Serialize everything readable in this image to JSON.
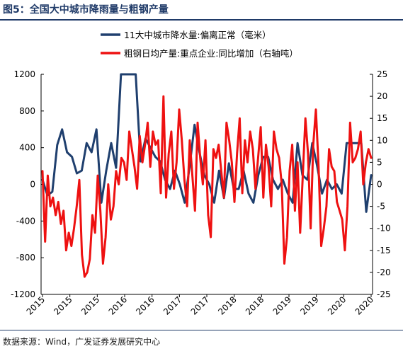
{
  "header": {
    "title": "图5：全国大中城市降雨量与粗钢产量"
  },
  "footer": {
    "source": "数据来源：Wind，广发证券发展研究中心"
  },
  "chart_data": {
    "type": "line",
    "title": "图5：全国大中城市降雨量与粗钢产量",
    "grid": false,
    "legend_position": "top-center",
    "x_tick_labels": [
      "2015",
      "2015",
      "2015",
      "2016",
      "2016",
      "2017",
      "2017",
      "2018",
      "2018",
      "2019",
      "2019",
      "2020",
      "2020"
    ],
    "y_left": {
      "ticks": [
        1200,
        800,
        400,
        0,
        -400,
        -800,
        -1200
      ],
      "ylim": [
        -1200,
        1200
      ]
    },
    "y_right": {
      "ticks": [
        25,
        20,
        15,
        10,
        5,
        0,
        -5,
        -10,
        -15,
        -20,
        -25
      ],
      "ylim": [
        -25,
        25
      ]
    },
    "series": [
      {
        "name": "11大中城市降水量:偏离正常（毫米）",
        "axis": "left",
        "color": "#1f3f6e",
        "values": [
          50,
          -120,
          -80,
          430,
          600,
          350,
          300,
          120,
          150,
          450,
          350,
          600,
          -200,
          150,
          450,
          180,
          1200,
          1200,
          1200,
          1200,
          250,
          500,
          400,
          300,
          250,
          50,
          -50,
          150,
          0,
          -200,
          200,
          650,
          350,
          100,
          0,
          -200,
          150,
          -150,
          230,
          -50,
          -50,
          150,
          -100,
          -200,
          100,
          300,
          300,
          50,
          -50,
          50,
          -100,
          -200,
          450,
          100,
          50,
          450,
          200,
          -100,
          50,
          -50,
          0,
          -100,
          450,
          450,
          450,
          450,
          -300,
          100
        ]
      },
      {
        "name": "粗钢日均产量:重点企业:同比增加（右轴吨）",
        "axis": "right",
        "color": "#ee1111",
        "values": [
          3,
          -13,
          2,
          -5,
          -3,
          -7,
          -4,
          -9,
          -6,
          -15,
          -11,
          -14,
          -10,
          -5,
          1,
          -16,
          -21,
          -20,
          -17,
          -7,
          -11,
          2,
          -6,
          -18,
          -12,
          0,
          -8,
          -5,
          3,
          0,
          6,
          5,
          1,
          12,
          8,
          4,
          -1,
          11,
          5,
          9,
          14,
          4,
          12,
          9,
          10,
          -2,
          20,
          -3,
          7,
          12,
          -1,
          5,
          17,
          10,
          1,
          -5,
          10,
          2,
          -6,
          14,
          6,
          0,
          10,
          -7,
          -12,
          8,
          6,
          9,
          3,
          -3,
          14,
          10,
          5,
          -4,
          7,
          15,
          -2,
          10,
          5,
          12,
          8,
          -1,
          6,
          13,
          -3,
          9,
          4,
          -5,
          12,
          8,
          6,
          0,
          -18,
          -12,
          3,
          9,
          -6,
          5,
          -11,
          2,
          15,
          7,
          -10,
          9,
          17,
          4,
          -14,
          -10,
          -5,
          8,
          4,
          3,
          -4,
          -6,
          -8,
          -15,
          -5,
          14,
          5,
          6,
          8,
          12,
          0,
          5,
          8,
          6
        ]
      }
    ]
  }
}
